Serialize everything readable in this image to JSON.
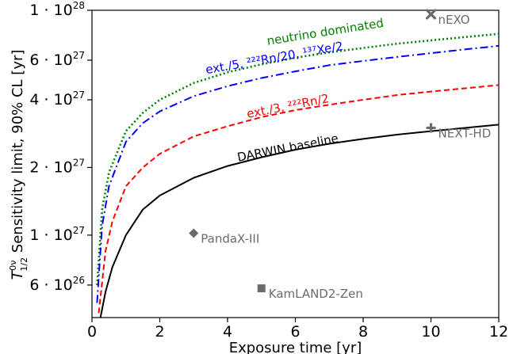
{
  "chart_data": {
    "type": "line",
    "xlabel": "Exposure time [yr]",
    "ylabel": {
      "sym": "T",
      "sup": "0ν",
      "sub": "1/2",
      "text": " Sensitivity limit, 90% CL [yr]"
    },
    "x_ticks": [
      0,
      2,
      4,
      6,
      8,
      10,
      12
    ],
    "y_ticks": [
      {
        "value": 1e+28,
        "mant": "1",
        "exp": "28"
      },
      {
        "value": 6e+27,
        "mant": "6",
        "exp": "27"
      },
      {
        "value": 4e+27,
        "mant": "4",
        "exp": "27"
      },
      {
        "value": 2e+27,
        "mant": "2",
        "exp": "27"
      },
      {
        "value": 1e+27,
        "mant": "1",
        "exp": "27"
      },
      {
        "value": 6e+26,
        "mant": "6",
        "exp": "26"
      }
    ],
    "y_scale": "log",
    "xlim": [
      0,
      12
    ],
    "ylim": [
      4.3e+26,
      1e+28
    ],
    "grid": false,
    "series": [
      {
        "name": "neutrino dominated",
        "color": "#008000",
        "style": "dotted",
        "x": [
          0.15,
          0.3,
          0.5,
          1,
          1.5,
          2,
          3,
          4,
          5,
          6,
          7,
          8,
          9,
          10,
          11,
          12
        ],
        "y": [
          6e+26,
          1.3e+27,
          1.9e+27,
          2.9e+27,
          3.5e+27,
          4e+27,
          4.75e+27,
          5.3e+27,
          5.75e+27,
          6.15e+27,
          6.5e+27,
          6.8e+27,
          7.1e+27,
          7.35e+27,
          7.6e+27,
          7.85e+27
        ]
      },
      {
        "name": "ext./5, ²²²Rn/20, ¹³⁷Xe/2",
        "color": "#0000ff",
        "style": "dashdot",
        "x": [
          0.15,
          0.3,
          0.5,
          1,
          1.5,
          2,
          3,
          4,
          5,
          6,
          7,
          8,
          9,
          10,
          11,
          12
        ],
        "y": [
          5e+26,
          1.1e+27,
          1.65e+27,
          2.6e+27,
          3.15e+27,
          3.55e+27,
          4.15e+27,
          4.6e+27,
          5e+27,
          5.35e+27,
          5.7e+27,
          5.95e+27,
          6.2e+27,
          6.45e+27,
          6.7e+27,
          6.95e+27
        ]
      },
      {
        "name": "ext./3, ²²²Rn/2",
        "color": "#ff0000",
        "style": "dashed",
        "x": [
          0.2,
          0.4,
          0.6,
          1,
          1.5,
          2,
          3,
          4,
          5,
          6,
          7,
          8,
          9,
          10,
          11,
          12
        ],
        "y": [
          4.5e+26,
          8.5e+26,
          1.15e+27,
          1.65e+27,
          2e+27,
          2.3e+27,
          2.75e+27,
          3.05e+27,
          3.35e+27,
          3.6e+27,
          3.8e+27,
          4e+27,
          4.2e+27,
          4.35e+27,
          4.5e+27,
          4.65e+27
        ]
      },
      {
        "name": "DARWIN baseline",
        "color": "#000000",
        "style": "solid",
        "x": [
          0.25,
          0.4,
          0.6,
          1,
          1.5,
          2,
          3,
          4,
          5,
          6,
          7,
          8,
          9,
          10,
          11,
          12
        ],
        "y": [
          4.3e+26,
          5.6e+26,
          7.2e+26,
          1e+27,
          1.3e+27,
          1.5e+27,
          1.8e+27,
          2.03e+27,
          2.22e+27,
          2.4e+27,
          2.55e+27,
          2.68e+27,
          2.8e+27,
          2.9e+27,
          3e+27,
          3.1e+27
        ]
      }
    ],
    "curve_labels": [
      {
        "series": 0,
        "text": "neutrino dominated",
        "x": 6.9,
        "y": 7.7e+27,
        "angle": -9
      },
      {
        "series": 1,
        "text": "ext./5, ²²²Rn/20, ¹³⁷Xe/2",
        "x": 5.4,
        "y": 5.9e+27,
        "angle": -10
      },
      {
        "series": 2,
        "text": "ext./3, ²²²Rn/2",
        "x": 5.8,
        "y": 3.6e+27,
        "angle": -11
      },
      {
        "series": 3,
        "text": "DARWIN baseline",
        "x": 5.8,
        "y": 2.35e+27,
        "angle": -11
      }
    ],
    "experiments": [
      {
        "name": "nEXO",
        "x": 10.0,
        "y": 9.6e+27,
        "marker": "x"
      },
      {
        "name": "NEXT-HD",
        "x": 10.0,
        "y": 3e+27,
        "marker": "plus"
      },
      {
        "name": "PandaX-III",
        "x": 3.0,
        "y": 1.02e+27,
        "marker": "diamond"
      },
      {
        "name": "KamLAND2-Zen",
        "x": 5.0,
        "y": 5.8e+26,
        "marker": "square"
      }
    ],
    "experiment_color": "#6b6b6b"
  }
}
